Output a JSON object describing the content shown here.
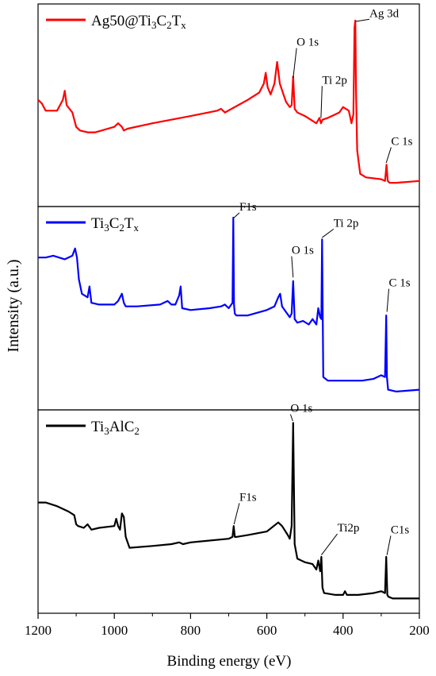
{
  "chart_data": {
    "type": "line",
    "xlabel": "Binding energy (eV)",
    "ylabel": "Intensity (a.u.)",
    "xlim": [
      1200,
      200
    ],
    "x_reversed": true,
    "x_ticks": [
      1200,
      1000,
      800,
      600,
      400,
      200
    ],
    "panels": [
      {
        "id": "ag",
        "color": "#ff0000",
        "legend_parts": [
          {
            "t": "Ag50@Ti",
            "s": ""
          },
          {
            "t": "3",
            "s": "sub"
          },
          {
            "t": "C",
            "s": ""
          },
          {
            "t": "2",
            "s": "sub"
          },
          {
            "t": "T",
            "s": ""
          },
          {
            "t": "x",
            "s": "sub"
          }
        ],
        "x": [
          1200,
          1190,
          1180,
          1170,
          1150,
          1135,
          1130,
          1125,
          1110,
          1100,
          1090,
          1070,
          1050,
          1000,
          990,
          980,
          975,
          965,
          900,
          800,
          730,
          720,
          710,
          650,
          620,
          608,
          603,
          598,
          590,
          580,
          573,
          566,
          550,
          540,
          535,
          531,
          527,
          520,
          500,
          470,
          462,
          458,
          454,
          440,
          410,
          400,
          385,
          378,
          373,
          370,
          368,
          366,
          363,
          360,
          355,
          340,
          300,
          290,
          286,
          283,
          278,
          260,
          200
        ],
        "y": [
          0.53,
          0.51,
          0.47,
          0.47,
          0.47,
          0.53,
          0.58,
          0.5,
          0.46,
          0.38,
          0.36,
          0.35,
          0.35,
          0.38,
          0.4,
          0.38,
          0.36,
          0.37,
          0.4,
          0.44,
          0.47,
          0.48,
          0.46,
          0.53,
          0.57,
          0.62,
          0.68,
          0.6,
          0.56,
          0.62,
          0.74,
          0.62,
          0.52,
          0.49,
          0.5,
          0.66,
          0.48,
          0.46,
          0.44,
          0.4,
          0.43,
          0.4,
          0.42,
          0.43,
          0.46,
          0.49,
          0.47,
          0.4,
          0.45,
          0.93,
          0.97,
          0.55,
          0.25,
          0.2,
          0.12,
          0.1,
          0.09,
          0.08,
          0.17,
          0.08,
          0.07,
          0.07,
          0.08
        ],
        "annotations": [
          {
            "text": "Ag 3d",
            "x": 367,
            "y": 0.965,
            "tx": 331,
            "ty": 0.99
          },
          {
            "text": "O 1s",
            "x": 531,
            "y": 0.65,
            "tx": 522,
            "ty": 0.83
          },
          {
            "text": "Ti 2p",
            "x": 458,
            "y": 0.43,
            "tx": 455,
            "ty": 0.62
          },
          {
            "text": "C 1s",
            "x": 287,
            "y": 0.18,
            "tx": 274,
            "ty": 0.28
          }
        ]
      },
      {
        "id": "mx",
        "color": "#0000ff",
        "legend_parts": [
          {
            "t": "Ti",
            "s": ""
          },
          {
            "t": "3",
            "s": "sub"
          },
          {
            "t": "C",
            "s": ""
          },
          {
            "t": "2",
            "s": "sub"
          },
          {
            "t": "T",
            "s": ""
          },
          {
            "t": "x",
            "s": "sub"
          }
        ],
        "x": [
          1200,
          1180,
          1160,
          1130,
          1110,
          1103,
          1098,
          1093,
          1085,
          1070,
          1065,
          1060,
          1040,
          1000,
          990,
          980,
          975,
          970,
          940,
          880,
          860,
          850,
          840,
          830,
          826,
          822,
          800,
          750,
          720,
          710,
          700,
          690,
          688,
          686,
          684,
          680,
          650,
          600,
          580,
          570,
          565,
          560,
          550,
          540,
          535,
          531,
          527,
          520,
          505,
          490,
          480,
          470,
          465,
          460,
          457,
          455,
          452,
          440,
          400,
          350,
          320,
          300,
          290,
          287,
          285,
          282,
          260,
          200
        ],
        "y": [
          0.78,
          0.78,
          0.79,
          0.77,
          0.79,
          0.83,
          0.78,
          0.66,
          0.58,
          0.56,
          0.62,
          0.53,
          0.52,
          0.52,
          0.54,
          0.58,
          0.53,
          0.51,
          0.51,
          0.52,
          0.54,
          0.52,
          0.52,
          0.57,
          0.62,
          0.5,
          0.49,
          0.5,
          0.51,
          0.52,
          0.5,
          0.53,
          1.0,
          0.52,
          0.47,
          0.46,
          0.46,
          0.49,
          0.51,
          0.56,
          0.58,
          0.51,
          0.48,
          0.45,
          0.47,
          0.65,
          0.44,
          0.42,
          0.43,
          0.41,
          0.44,
          0.41,
          0.5,
          0.45,
          0.44,
          0.88,
          0.12,
          0.1,
          0.1,
          0.1,
          0.11,
          0.13,
          0.12,
          0.46,
          0.12,
          0.05,
          0.04,
          0.05
        ],
        "annotations": [
          {
            "text": "F1s",
            "x": 686,
            "y": 1.0,
            "tx": 672,
            "ty": 1.04
          },
          {
            "text": "O 1s",
            "x": 531,
            "y": 0.67,
            "tx": 535,
            "ty": 0.8
          },
          {
            "text": "Ti 2p",
            "x": 455,
            "y": 0.89,
            "tx": 425,
            "ty": 0.95
          },
          {
            "text": "C 1s",
            "x": 285,
            "y": 0.48,
            "tx": 280,
            "ty": 0.62
          }
        ]
      },
      {
        "id": "max",
        "color": "#000000",
        "legend_parts": [
          {
            "t": "Ti",
            "s": ""
          },
          {
            "t": "3",
            "s": "sub"
          },
          {
            "t": "AlC",
            "s": ""
          },
          {
            "t": "2",
            "s": "sub"
          }
        ],
        "x": [
          1200,
          1180,
          1150,
          1120,
          1105,
          1100,
          1095,
          1080,
          1070,
          1060,
          1040,
          1000,
          995,
          990,
          985,
          980,
          975,
          970,
          960,
          900,
          850,
          830,
          820,
          800,
          700,
          690,
          687,
          684,
          680,
          650,
          600,
          570,
          560,
          545,
          540,
          535,
          531,
          527,
          520,
          500,
          480,
          470,
          465,
          460,
          457,
          454,
          450,
          420,
          400,
          395,
          390,
          360,
          320,
          300,
          290,
          287,
          284,
          281,
          270,
          230,
          200
        ],
        "y": [
          0.55,
          0.55,
          0.53,
          0.5,
          0.48,
          0.43,
          0.42,
          0.41,
          0.43,
          0.4,
          0.41,
          0.42,
          0.46,
          0.42,
          0.4,
          0.49,
          0.47,
          0.36,
          0.3,
          0.31,
          0.32,
          0.33,
          0.32,
          0.33,
          0.35,
          0.36,
          0.42,
          0.36,
          0.36,
          0.37,
          0.39,
          0.44,
          0.42,
          0.37,
          0.35,
          0.42,
          0.99,
          0.32,
          0.24,
          0.22,
          0.21,
          0.18,
          0.23,
          0.17,
          0.25,
          0.08,
          0.05,
          0.04,
          0.04,
          0.06,
          0.04,
          0.04,
          0.05,
          0.06,
          0.05,
          0.25,
          0.04,
          0.03,
          0.02,
          0.02,
          0.02
        ],
        "annotations": [
          {
            "text": "O 1s",
            "x": 532,
            "y": 1.0,
            "tx": 538,
            "ty": 1.05
          },
          {
            "text": "F1s",
            "x": 686,
            "y": 0.43,
            "tx": 672,
            "ty": 0.56
          },
          {
            "text": "Ti2p",
            "x": 457,
            "y": 0.26,
            "tx": 415,
            "ty": 0.39
          },
          {
            "text": "C1s",
            "x": 285,
            "y": 0.26,
            "tx": 275,
            "ty": 0.38
          }
        ]
      }
    ]
  }
}
